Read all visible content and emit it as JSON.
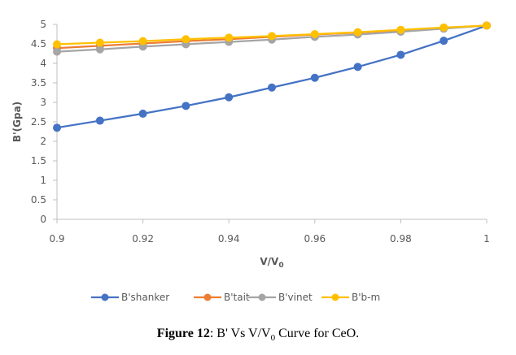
{
  "chart_data": {
    "type": "line",
    "title": "",
    "xlabel": "V/V",
    "xlabel_subscript": "0",
    "ylabel": "B'(Gpa)",
    "xlim": [
      0.9,
      1.0
    ],
    "ylim": [
      0,
      5
    ],
    "x_ticks": [
      "0.9",
      "0.92",
      "0.94",
      "0.96",
      "0.98",
      "1"
    ],
    "x_tick_values": [
      0.9,
      0.92,
      0.94,
      0.96,
      0.98,
      1.0
    ],
    "y_ticks": [
      "0",
      "0.5",
      "1",
      "1.5",
      "2",
      "2.5",
      "3",
      "3.5",
      "4",
      "4.5",
      "5"
    ],
    "y_tick_values": [
      0,
      0.5,
      1,
      1.5,
      2,
      2.5,
      3,
      3.5,
      4,
      4.5,
      5
    ],
    "grid": false,
    "legend_position": "bottom",
    "x": [
      0.9,
      0.91,
      0.92,
      0.93,
      0.94,
      0.95,
      0.96,
      0.97,
      0.98,
      0.99,
      1.0
    ],
    "series": [
      {
        "name": "B'shanker",
        "color": "#4472C4",
        "values": [
          2.35,
          2.53,
          2.71,
          2.91,
          3.13,
          3.38,
          3.63,
          3.91,
          4.22,
          4.58,
          4.97
        ]
      },
      {
        "name": "B'tait",
        "color": "#ED7D31",
        "values": [
          4.39,
          4.45,
          4.51,
          4.57,
          4.62,
          4.68,
          4.74,
          4.79,
          4.85,
          4.91,
          4.97
        ]
      },
      {
        "name": "B'vinet",
        "color": "#A5A5A5",
        "values": [
          4.3,
          4.36,
          4.43,
          4.49,
          4.55,
          4.61,
          4.68,
          4.74,
          4.81,
          4.89,
          4.97
        ]
      },
      {
        "name": "B'b-m",
        "color": "#FFC000",
        "values": [
          4.49,
          4.53,
          4.57,
          4.62,
          4.66,
          4.7,
          4.75,
          4.8,
          4.86,
          4.92,
          4.97
        ]
      }
    ]
  },
  "caption": {
    "label": "Figure 12",
    "text_before_sub": ": B' Vs V/V",
    "subscript": "0",
    "text_after_sub": " Curve for CeO."
  }
}
